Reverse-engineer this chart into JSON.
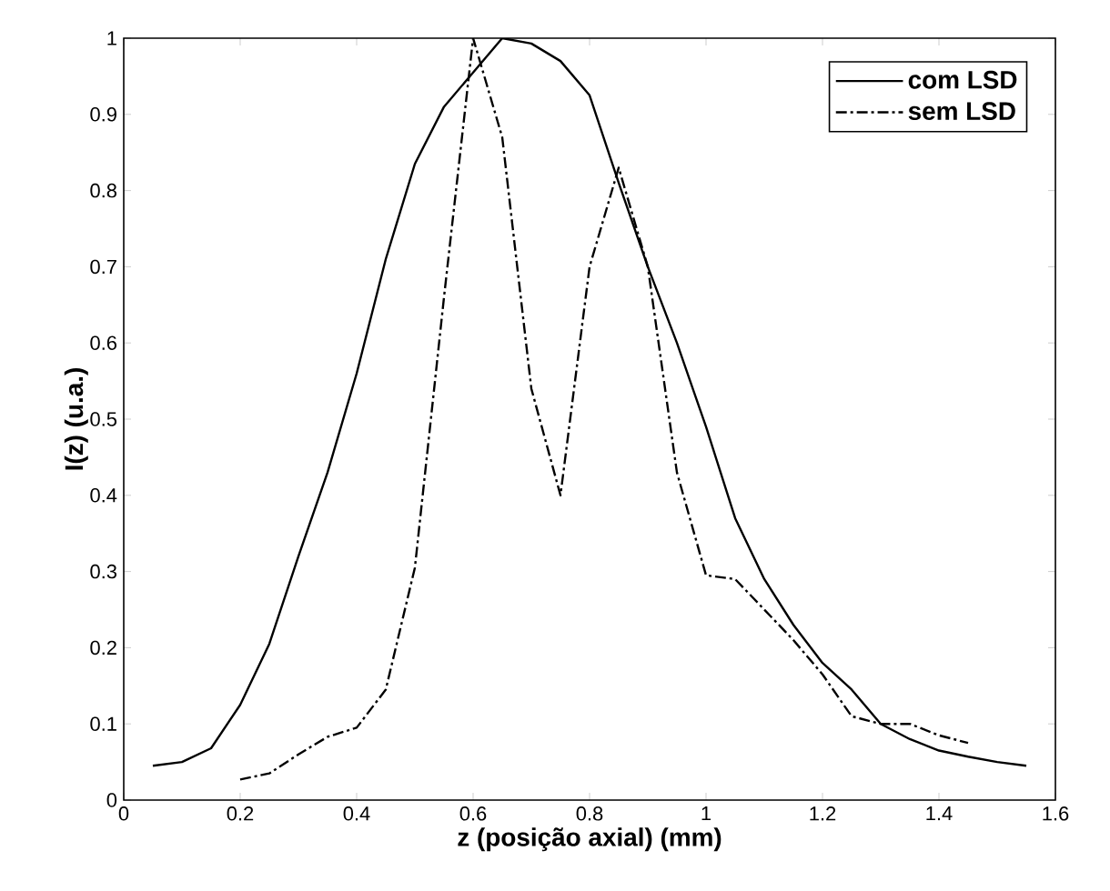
{
  "chart_data": {
    "type": "line",
    "xlabel": "z (posição axial) (mm)",
    "ylabel": "I(z) (u.a.)",
    "xlim": [
      0,
      1.6
    ],
    "ylim": [
      0,
      1
    ],
    "xticks": [
      0,
      0.2,
      0.4,
      0.6,
      0.8,
      1,
      1.2,
      1.4,
      1.6
    ],
    "yticks": [
      0,
      0.1,
      0.2,
      0.3,
      0.4,
      0.5,
      0.6,
      0.7,
      0.8,
      0.9,
      1
    ],
    "grid": false,
    "legend": "top right",
    "marker": "none",
    "series": [
      {
        "name": "com LSD",
        "color": "#000000",
        "line_style": "solid",
        "x": [
          0.05,
          0.1,
          0.15,
          0.2,
          0.25,
          0.3,
          0.35,
          0.4,
          0.45,
          0.5,
          0.55,
          0.6,
          0.65,
          0.7,
          0.75,
          0.8,
          0.85,
          0.9,
          0.95,
          1.0,
          1.05,
          1.1,
          1.15,
          1.2,
          1.25,
          1.3,
          1.35,
          1.4,
          1.45,
          1.5,
          1.55
        ],
        "values": [
          0.045,
          0.05,
          0.068,
          0.125,
          0.205,
          0.32,
          0.43,
          0.56,
          0.71,
          0.835,
          0.91,
          0.955,
          1.0,
          0.993,
          0.97,
          0.925,
          0.81,
          0.7,
          0.6,
          0.49,
          0.37,
          0.29,
          0.23,
          0.18,
          0.145,
          0.1,
          0.08,
          0.065,
          0.057,
          0.05,
          0.045
        ]
      },
      {
        "name": "sem LSD",
        "color": "#000000",
        "line_style": "dashdot",
        "x": [
          0.2,
          0.25,
          0.3,
          0.35,
          0.4,
          0.45,
          0.5,
          0.55,
          0.6,
          0.65,
          0.7,
          0.75,
          0.8,
          0.85,
          0.9,
          0.95,
          1.0,
          1.05,
          1.1,
          1.15,
          1.2,
          1.25,
          1.3,
          1.35,
          1.4,
          1.45
        ],
        "values": [
          0.027,
          0.035,
          0.06,
          0.083,
          0.095,
          0.145,
          0.305,
          0.66,
          1.0,
          0.87,
          0.54,
          0.4,
          0.7,
          0.83,
          0.7,
          0.43,
          0.295,
          0.29,
          0.25,
          0.21,
          0.165,
          0.11,
          0.1,
          0.1,
          0.085,
          0.075
        ]
      }
    ]
  }
}
